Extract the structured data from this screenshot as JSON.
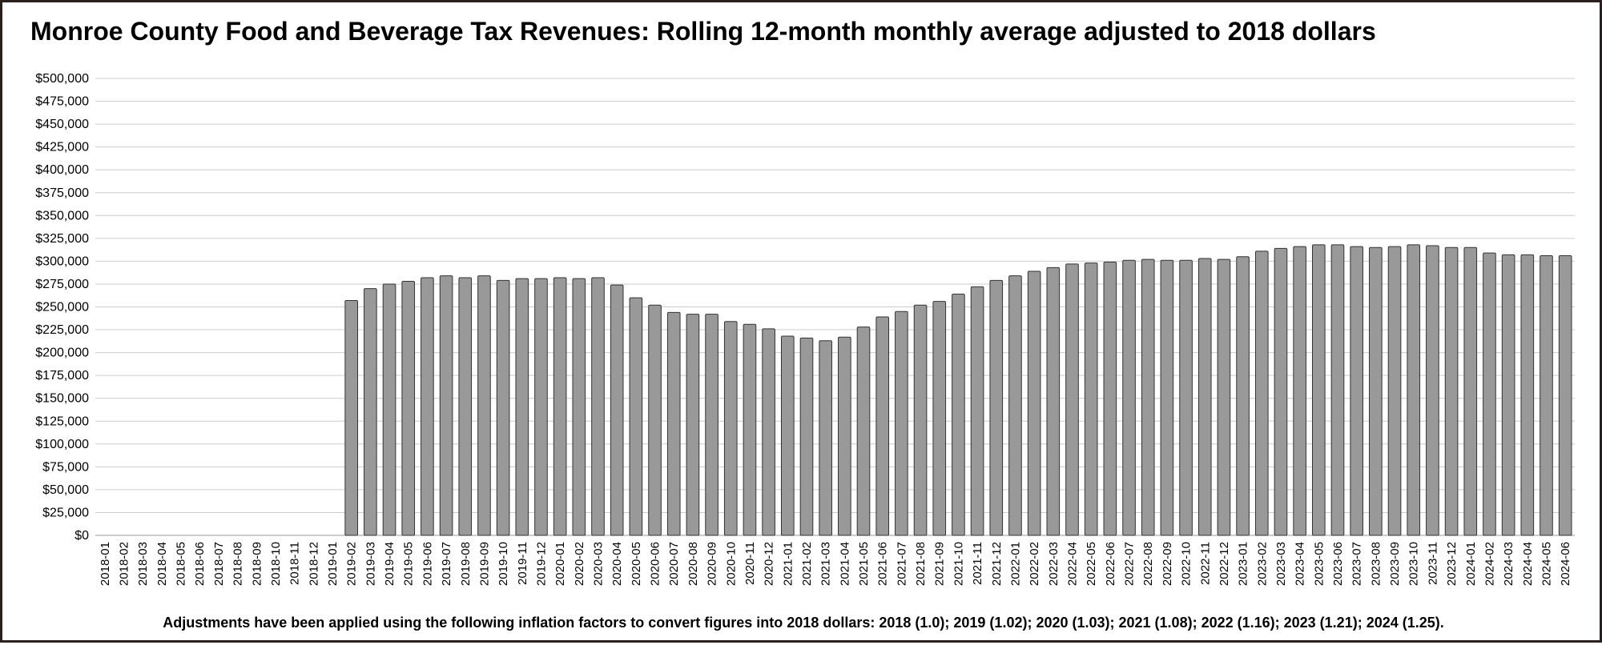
{
  "chart_data": {
    "type": "bar",
    "title": "Monroe County Food and Beverage Tax Revenues: Rolling 12-month monthly average adjusted to 2018 dollars",
    "footnote": "Adjustments have been applied using the following inflation factors to convert figures into 2018 dollars: 2018 (1.0); 2019 (1.02); 2020 (1.03); 2021 (1.08); 2022 (1.16); 2023 (1.21); 2024 (1.25).",
    "xlabel": "",
    "ylabel": "",
    "ylim": [
      0,
      500000
    ],
    "yticks": [
      0,
      25000,
      50000,
      75000,
      100000,
      125000,
      150000,
      175000,
      200000,
      225000,
      250000,
      275000,
      300000,
      325000,
      350000,
      375000,
      400000,
      425000,
      450000,
      475000,
      500000
    ],
    "ytick_labels": [
      "$0",
      "$25,000",
      "$50,000",
      "$75,000",
      "$100,000",
      "$125,000",
      "$150,000",
      "$175,000",
      "$200,000",
      "$225,000",
      "$250,000",
      "$275,000",
      "$300,000",
      "$325,000",
      "$350,000",
      "$375,000",
      "$400,000",
      "$425,000",
      "$450,000",
      "$475,000",
      "$500,000"
    ],
    "grid": true,
    "bar_color": "#999999",
    "bar_edge_color": "#333333",
    "grid_color": "#cccccc",
    "categories": [
      "2018-01",
      "2018-02",
      "2018-03",
      "2018-04",
      "2018-05",
      "2018-06",
      "2018-07",
      "2018-08",
      "2018-09",
      "2018-10",
      "2018-11",
      "2018-12",
      "2019-01",
      "2019-02",
      "2019-03",
      "2019-04",
      "2019-05",
      "2019-06",
      "2019-07",
      "2019-08",
      "2019-09",
      "2019-10",
      "2019-11",
      "2019-12",
      "2020-01",
      "2020-02",
      "2020-03",
      "2020-04",
      "2020-05",
      "2020-06",
      "2020-07",
      "2020-08",
      "2020-09",
      "2020-10",
      "2020-11",
      "2020-12",
      "2021-01",
      "2021-02",
      "2021-03",
      "2021-04",
      "2021-05",
      "2021-06",
      "2021-07",
      "2021-08",
      "2021-09",
      "2021-10",
      "2021-11",
      "2021-12",
      "2022-01",
      "2022-02",
      "2022-03",
      "2022-04",
      "2022-05",
      "2022-06",
      "2022-07",
      "2022-08",
      "2022-09",
      "2022-10",
      "2022-11",
      "2022-12",
      "2023-01",
      "2023-02",
      "2023-03",
      "2023-04",
      "2023-05",
      "2023-06",
      "2023-07",
      "2023-08",
      "2023-09",
      "2023-10",
      "2023-11",
      "2023-12",
      "2024-01",
      "2024-02",
      "2024-03",
      "2024-04",
      "2024-05",
      "2024-06"
    ],
    "values": [
      null,
      null,
      null,
      null,
      null,
      null,
      null,
      null,
      null,
      null,
      null,
      null,
      null,
      257000,
      270000,
      275000,
      278000,
      282000,
      284000,
      282000,
      284000,
      279000,
      281000,
      281000,
      282000,
      281000,
      282000,
      274000,
      260000,
      252000,
      244000,
      242000,
      242000,
      234000,
      231000,
      226000,
      218000,
      216000,
      213000,
      217000,
      228000,
      239000,
      245000,
      252000,
      256000,
      264000,
      272000,
      279000,
      284000,
      289000,
      293000,
      297000,
      298000,
      299000,
      301000,
      302000,
      301000,
      301000,
      303000,
      302000,
      305000,
      311000,
      314000,
      316000,
      318000,
      318000,
      316000,
      315000,
      316000,
      318000,
      317000,
      315000,
      315000,
      309000,
      307000,
      307000,
      306000,
      306000
    ]
  }
}
